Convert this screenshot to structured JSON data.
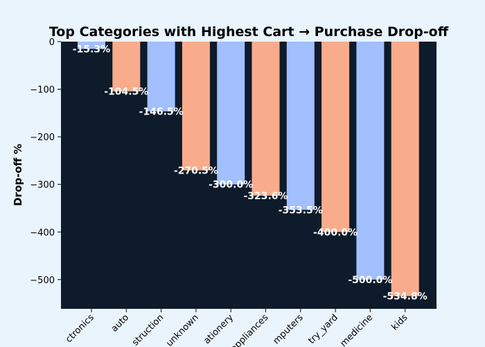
{
  "chart_data": {
    "type": "bar",
    "title": "Top Categories with Highest Cart → Purchase Drop-off",
    "xlabel": "",
    "ylabel": "Drop-off %",
    "categories": [
      "electronics",
      "auto",
      "construction",
      "unknown",
      "stationery",
      "appliances",
      "computers",
      "country_yard",
      "medicine",
      "kids"
    ],
    "tick_labels": [
      "ctronics",
      "auto",
      "struction",
      "unknown",
      "ationery",
      "appliances",
      "mputers",
      "try_yard",
      "medicine",
      "kids"
    ],
    "values": [
      -15.3,
      -104.5,
      -146.5,
      -270.5,
      -300.0,
      -323.6,
      -353.5,
      -400.0,
      -500.0,
      -534.8
    ],
    "data_labels": [
      "-15.3%",
      "-104.5%",
      "-146.5%",
      "-270.5%",
      "-300.0%",
      "-323.6%",
      "-353.5%",
      "-400.0%",
      "-500.0%",
      "-534.8%"
    ],
    "ylim": [
      -561.5,
      0
    ],
    "yticks": [
      0,
      -100,
      -200,
      -300,
      -400,
      -500
    ],
    "grid": false,
    "colors": {
      "plot_background": "#0d1b2a",
      "figure_background": "#eaf4fd",
      "bar_even": "#a2bffe",
      "bar_odd": "#f9ac8c",
      "label_text": "#ffffff"
    }
  }
}
